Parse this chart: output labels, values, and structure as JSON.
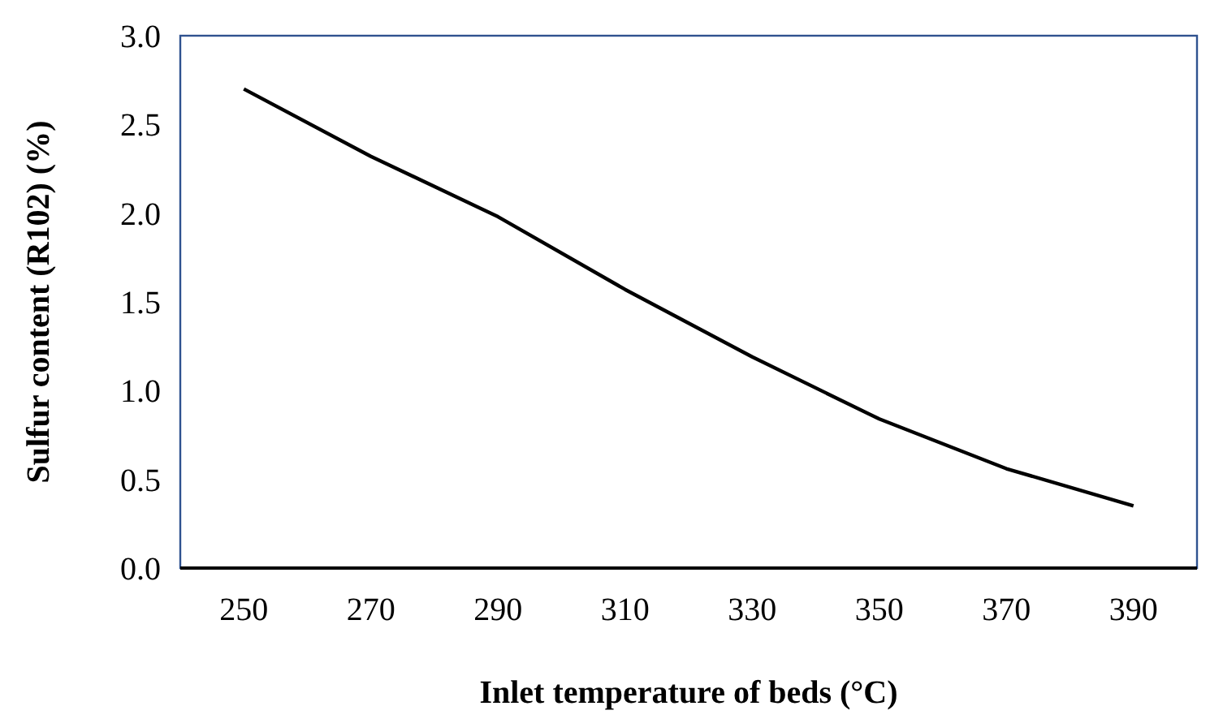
{
  "chart_data": {
    "type": "line",
    "xlabel": "Inlet temperature of beds (°C)",
    "ylabel": "Sulfur content (R102) (%)",
    "categories": [
      "250",
      "270",
      "290",
      "310",
      "330",
      "350",
      "370",
      "390"
    ],
    "series": [
      {
        "color": "#000000",
        "values": [
          2.7,
          2.32,
          1.98,
          1.57,
          1.19,
          0.84,
          0.56,
          0.35
        ]
      }
    ],
    "ylim": [
      0,
      3
    ],
    "yticks": [
      {
        "value": 0,
        "label": "0.0"
      },
      {
        "value": 0.5,
        "label": "0.5"
      },
      {
        "value": 1,
        "label": "1.0"
      },
      {
        "value": 1.5,
        "label": "1.5"
      },
      {
        "value": 2,
        "label": "2.0"
      },
      {
        "value": 2.5,
        "label": "2.5"
      },
      {
        "value": 3,
        "label": "3.0"
      }
    ],
    "grid": false,
    "marker": "none",
    "line_style": "solid"
  }
}
